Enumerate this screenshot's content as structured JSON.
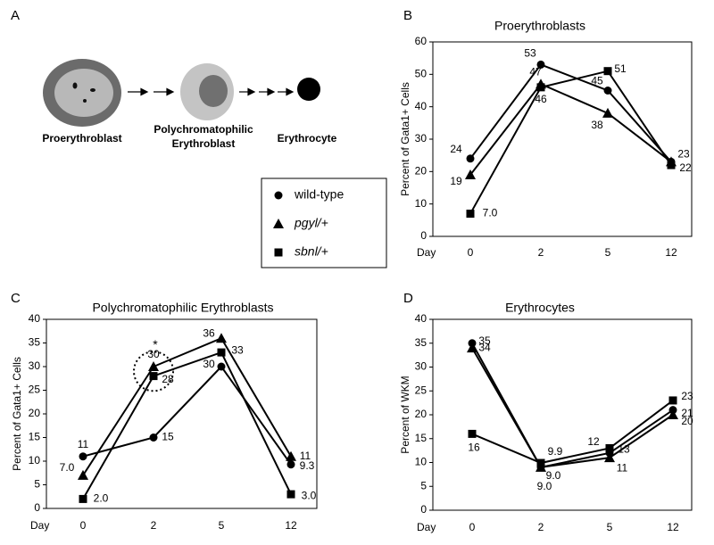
{
  "panel_a": {
    "label": "A",
    "cells": [
      "Proerythroblast",
      "Polychromatophilic",
      "Erythroblast",
      "Erythrocyte"
    ]
  },
  "chart_data": [
    {
      "type": "line",
      "panel_label": "B",
      "title": "Proerythroblasts",
      "ylabel": "Percent of Gata1+ Cells",
      "xlabel": "Day",
      "categories": [
        "0",
        "2",
        "5",
        "12"
      ],
      "ylim": [
        0,
        60
      ],
      "yticks": [
        0,
        10,
        20,
        30,
        40,
        50,
        60
      ],
      "series": [
        {
          "name": "wild-type",
          "marker": "circle",
          "color": "#000",
          "values": [
            24,
            53,
            45,
            23
          ],
          "value_labels": [
            "24",
            "53",
            "45",
            "23"
          ]
        },
        {
          "name": "pgyl/+",
          "marker": "triangle",
          "color": "#000",
          "values": [
            19,
            47,
            38,
            23
          ],
          "value_labels": [
            "19",
            "47",
            "38",
            null
          ]
        },
        {
          "name": "sbnl/+",
          "marker": "square",
          "color": "#000",
          "values": [
            7.0,
            46,
            51,
            22
          ],
          "value_labels": [
            "7.0",
            "46",
            "51",
            "22"
          ]
        }
      ]
    },
    {
      "type": "line",
      "panel_label": "C",
      "title": "Polychromatophilic Erythroblasts",
      "ylabel": "Percent of Gata1+ Cells",
      "xlabel": "Day",
      "categories": [
        "0",
        "2",
        "5",
        "12"
      ],
      "ylim": [
        0,
        40
      ],
      "yticks": [
        0,
        5,
        10,
        15,
        20,
        25,
        30,
        35,
        40
      ],
      "annotation": "*",
      "series": [
        {
          "name": "wild-type",
          "marker": "circle",
          "color": "#000",
          "values": [
            11,
            15,
            30,
            9.3
          ],
          "value_labels": [
            "11",
            "15",
            "30",
            "9.3"
          ]
        },
        {
          "name": "pgyl/+",
          "marker": "triangle",
          "color": "#000",
          "values": [
            7.0,
            30,
            36,
            11
          ],
          "value_labels": [
            "7.0",
            "30",
            "36",
            "11"
          ]
        },
        {
          "name": "sbnl/+",
          "marker": "square",
          "color": "#000",
          "values": [
            2.0,
            28,
            33,
            3.0
          ],
          "value_labels": [
            "2.0",
            "28",
            "33",
            "3.0"
          ]
        }
      ]
    },
    {
      "type": "line",
      "panel_label": "D",
      "title": "Erythrocytes",
      "ylabel": "Percent of WKM",
      "xlabel": "Day",
      "categories": [
        "0",
        "2",
        "5",
        "12"
      ],
      "ylim": [
        0,
        40
      ],
      "yticks": [
        0,
        5,
        10,
        15,
        20,
        25,
        30,
        35,
        40
      ],
      "series": [
        {
          "name": "wild-type",
          "marker": "circle",
          "color": "#000",
          "values": [
            35,
            9.0,
            12,
            21
          ],
          "value_labels": [
            "35",
            "9.0",
            "12",
            "21"
          ]
        },
        {
          "name": "pgyl/+",
          "marker": "triangle",
          "color": "#000",
          "values": [
            34,
            9.0,
            11,
            20
          ],
          "value_labels": [
            "34",
            "9.0",
            "11",
            "20"
          ]
        },
        {
          "name": "sbnl/+",
          "marker": "square",
          "color": "#000",
          "values": [
            16,
            9.9,
            13,
            23
          ],
          "value_labels": [
            "16",
            "9.9",
            "13",
            "23"
          ]
        }
      ]
    }
  ]
}
